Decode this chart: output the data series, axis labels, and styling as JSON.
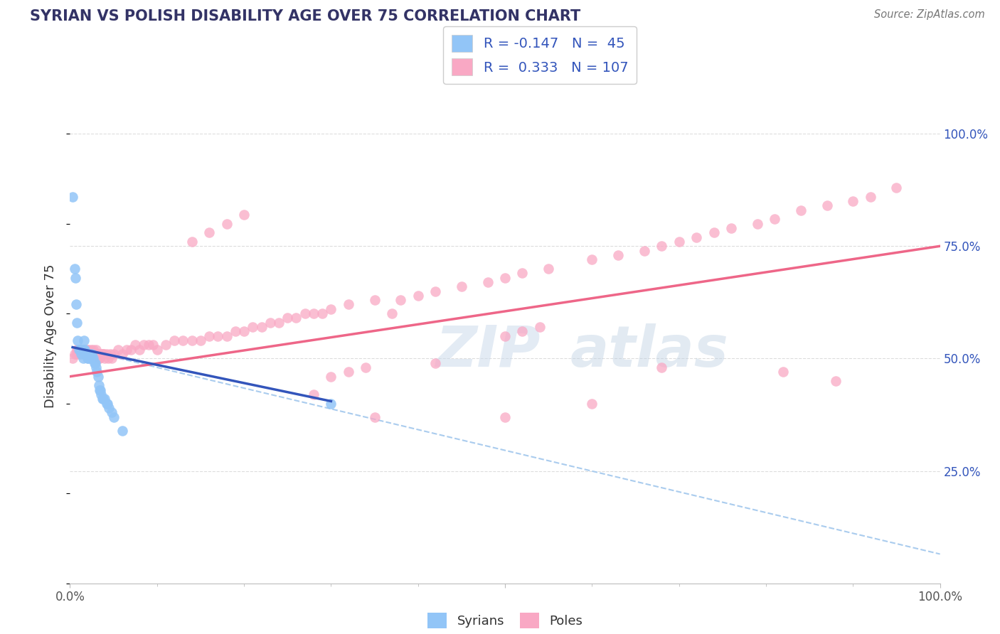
{
  "title": "SYRIAN VS POLISH DISABILITY AGE OVER 75 CORRELATION CHART",
  "source": "Source: ZipAtlas.com",
  "ylabel": "Disability Age Over 75",
  "xlim": [
    0,
    1.0
  ],
  "ylim": [
    0,
    1.1
  ],
  "x_tick_labels": [
    "0.0%",
    "100.0%"
  ],
  "y_tick_labels_right": [
    "100.0%",
    "75.0%",
    "50.0%",
    "25.0%"
  ],
  "y_tick_positions_right": [
    1.0,
    0.75,
    0.5,
    0.25
  ],
  "legend_r1": "R = -0.147",
  "legend_n1": "N =  45",
  "legend_r2": "R =  0.333",
  "legend_n2": "N = 107",
  "color_syrian": "#92C5F7",
  "color_pole": "#F9A8C4",
  "color_line_syrian": "#3355BB",
  "color_line_pole": "#EE6688",
  "color_dashed": "#AACCEE",
  "color_title": "#333366",
  "color_source": "#777777",
  "color_legend_text_blue": "#3355BB",
  "color_legend_text_black": "#222222",
  "color_grid": "#DDDDDD",
  "background_color": "#FFFFFF",
  "syrian_x": [
    0.003,
    0.005,
    0.006,
    0.007,
    0.008,
    0.009,
    0.01,
    0.011,
    0.012,
    0.013,
    0.014,
    0.015,
    0.015,
    0.016,
    0.016,
    0.017,
    0.018,
    0.019,
    0.02,
    0.021,
    0.022,
    0.023,
    0.024,
    0.025,
    0.026,
    0.027,
    0.028,
    0.029,
    0.03,
    0.031,
    0.032,
    0.033,
    0.034,
    0.035,
    0.036,
    0.037,
    0.038,
    0.04,
    0.042,
    0.043,
    0.045,
    0.048,
    0.05,
    0.06,
    0.3
  ],
  "syrian_y": [
    0.86,
    0.7,
    0.68,
    0.62,
    0.58,
    0.54,
    0.52,
    0.52,
    0.52,
    0.51,
    0.52,
    0.5,
    0.52,
    0.54,
    0.52,
    0.52,
    0.51,
    0.51,
    0.5,
    0.5,
    0.51,
    0.5,
    0.5,
    0.51,
    0.5,
    0.5,
    0.49,
    0.49,
    0.48,
    0.47,
    0.46,
    0.44,
    0.43,
    0.43,
    0.42,
    0.41,
    0.41,
    0.41,
    0.4,
    0.4,
    0.39,
    0.38,
    0.37,
    0.34,
    0.4
  ],
  "pole_x": [
    0.003,
    0.005,
    0.007,
    0.008,
    0.009,
    0.01,
    0.011,
    0.012,
    0.013,
    0.014,
    0.015,
    0.016,
    0.017,
    0.018,
    0.019,
    0.02,
    0.021,
    0.022,
    0.023,
    0.024,
    0.025,
    0.026,
    0.027,
    0.028,
    0.029,
    0.03,
    0.031,
    0.032,
    0.033,
    0.034,
    0.035,
    0.036,
    0.037,
    0.038,
    0.039,
    0.04,
    0.042,
    0.044,
    0.046,
    0.048,
    0.05,
    0.055,
    0.06,
    0.065,
    0.07,
    0.075,
    0.08,
    0.085,
    0.09,
    0.095,
    0.1,
    0.11,
    0.12,
    0.13,
    0.14,
    0.15,
    0.16,
    0.17,
    0.18,
    0.19,
    0.2,
    0.21,
    0.22,
    0.23,
    0.24,
    0.25,
    0.26,
    0.27,
    0.28,
    0.29,
    0.3,
    0.32,
    0.35,
    0.38,
    0.4,
    0.42,
    0.45,
    0.48,
    0.5,
    0.52,
    0.55,
    0.6,
    0.63,
    0.66,
    0.68,
    0.7,
    0.72,
    0.74,
    0.76,
    0.79,
    0.81,
    0.84,
    0.87,
    0.9,
    0.92,
    0.95,
    0.3,
    0.32,
    0.34,
    0.37,
    0.5,
    0.52,
    0.54,
    0.14,
    0.16,
    0.18,
    0.2
  ],
  "pole_y": [
    0.5,
    0.51,
    0.51,
    0.52,
    0.52,
    0.51,
    0.52,
    0.51,
    0.52,
    0.52,
    0.52,
    0.51,
    0.52,
    0.51,
    0.52,
    0.51,
    0.52,
    0.51,
    0.51,
    0.52,
    0.51,
    0.51,
    0.52,
    0.51,
    0.51,
    0.52,
    0.51,
    0.51,
    0.5,
    0.5,
    0.51,
    0.51,
    0.51,
    0.51,
    0.51,
    0.5,
    0.51,
    0.5,
    0.51,
    0.5,
    0.51,
    0.52,
    0.51,
    0.52,
    0.52,
    0.53,
    0.52,
    0.53,
    0.53,
    0.53,
    0.52,
    0.53,
    0.54,
    0.54,
    0.54,
    0.54,
    0.55,
    0.55,
    0.55,
    0.56,
    0.56,
    0.57,
    0.57,
    0.58,
    0.58,
    0.59,
    0.59,
    0.6,
    0.6,
    0.6,
    0.61,
    0.62,
    0.63,
    0.63,
    0.64,
    0.65,
    0.66,
    0.67,
    0.68,
    0.69,
    0.7,
    0.72,
    0.73,
    0.74,
    0.75,
    0.76,
    0.77,
    0.78,
    0.79,
    0.8,
    0.81,
    0.83,
    0.84,
    0.85,
    0.86,
    0.88,
    0.46,
    0.47,
    0.48,
    0.6,
    0.55,
    0.56,
    0.57,
    0.76,
    0.78,
    0.8,
    0.82
  ],
  "pole_x_outliers": [
    0.28,
    0.35,
    0.42,
    0.5,
    0.6,
    0.68,
    0.82,
    0.88
  ],
  "pole_y_outliers": [
    0.42,
    0.37,
    0.49,
    0.37,
    0.4,
    0.48,
    0.47,
    0.45
  ],
  "watermark_zip": "ZIP",
  "watermark_atlas": "atlas",
  "regression_pole_x0": 0.0,
  "regression_pole_y0": 0.46,
  "regression_pole_x1": 1.0,
  "regression_pole_y1": 0.75,
  "regression_syrian_x0": 0.003,
  "regression_syrian_y0": 0.525,
  "regression_syrian_x1": 0.3,
  "regression_syrian_y1": 0.405,
  "regression_dashed_x0": 0.003,
  "regression_dashed_y0": 0.525,
  "regression_dashed_x1": 1.0,
  "regression_dashed_y1": 0.065
}
